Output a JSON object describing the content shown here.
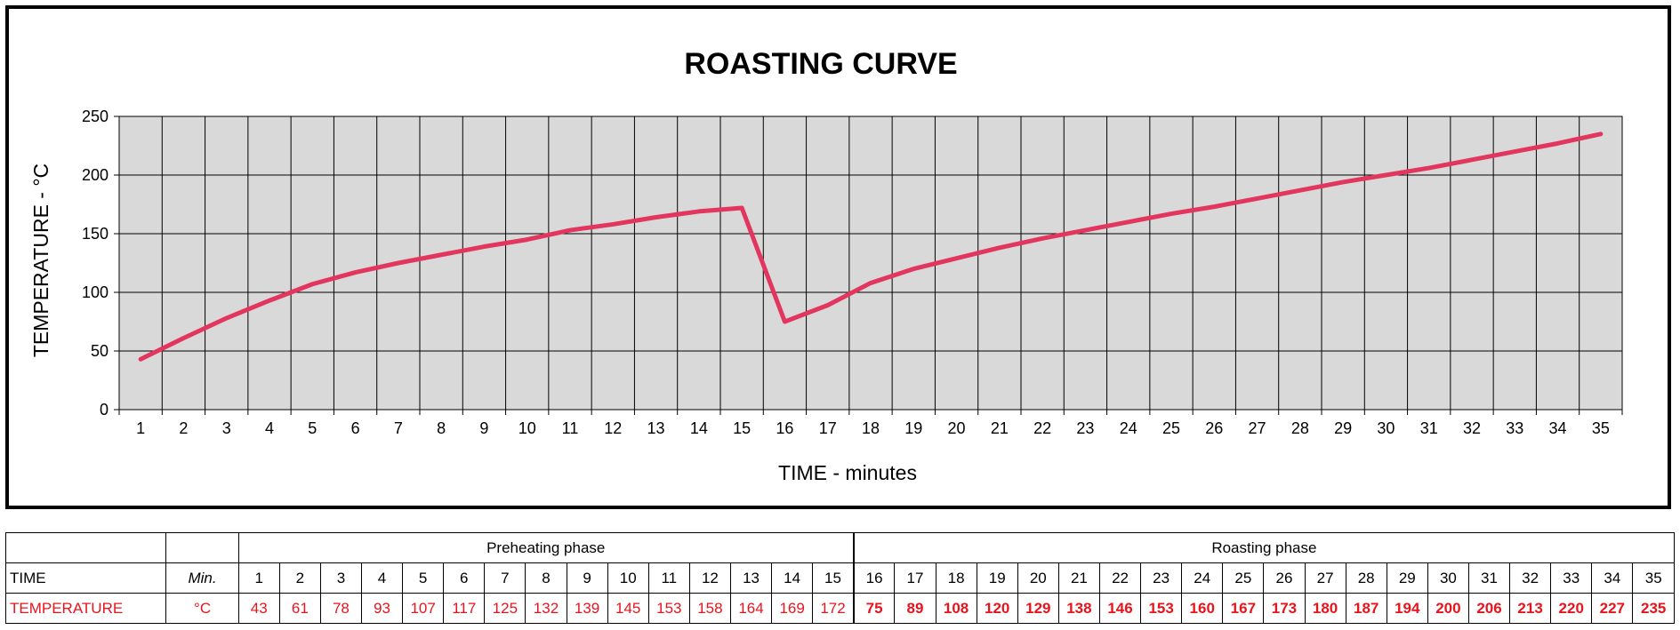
{
  "chart_data": {
    "type": "line",
    "title": "ROASTING CURVE",
    "xlabel": "TIME - minutes",
    "ylabel": "TEMPERATURE  - °C",
    "x": [
      1,
      2,
      3,
      4,
      5,
      6,
      7,
      8,
      9,
      10,
      11,
      12,
      13,
      14,
      15,
      16,
      17,
      18,
      19,
      20,
      21,
      22,
      23,
      24,
      25,
      26,
      27,
      28,
      29,
      30,
      31,
      32,
      33,
      34,
      35
    ],
    "series": [
      {
        "values": [
          43,
          61,
          78,
          93,
          107,
          117,
          125,
          132,
          139,
          145,
          153,
          158,
          164,
          169,
          172,
          75,
          89,
          108,
          120,
          129,
          138,
          146,
          153,
          160,
          167,
          173,
          180,
          187,
          194,
          200,
          206,
          213,
          220,
          227,
          235
        ]
      }
    ],
    "ylim": [
      0,
      250
    ],
    "yticks": [
      0,
      50,
      100,
      150,
      200,
      250
    ],
    "grid": true,
    "plot_background": "#d9d9d9",
    "line_color": "#e2365f"
  },
  "table": {
    "phase_preheat": "Preheating phase",
    "phase_roast": "Roasting phase",
    "time_label": "TIME",
    "time_unit": "Min.",
    "temp_label": "TEMPERATURE",
    "temp_unit": "°C",
    "times": [
      "1",
      "2",
      "3",
      "4",
      "5",
      "6",
      "7",
      "8",
      "9",
      "10",
      "11",
      "12",
      "13",
      "14",
      "15",
      "16",
      "17",
      "18",
      "19",
      "20",
      "21",
      "22",
      "23",
      "24",
      "25",
      "26",
      "27",
      "28",
      "29",
      "30",
      "31",
      "32",
      "33",
      "34",
      "35"
    ],
    "temps": [
      "43",
      "61",
      "78",
      "93",
      "107",
      "117",
      "125",
      "132",
      "139",
      "145",
      "153",
      "158",
      "164",
      "169",
      "172",
      "75",
      "89",
      "108",
      "120",
      "129",
      "138",
      "146",
      "153",
      "160",
      "167",
      "173",
      "180",
      "187",
      "194",
      "200",
      "206",
      "213",
      "220",
      "227",
      "235"
    ],
    "preheat_count": 15,
    "temp_color": "#e8141c"
  }
}
